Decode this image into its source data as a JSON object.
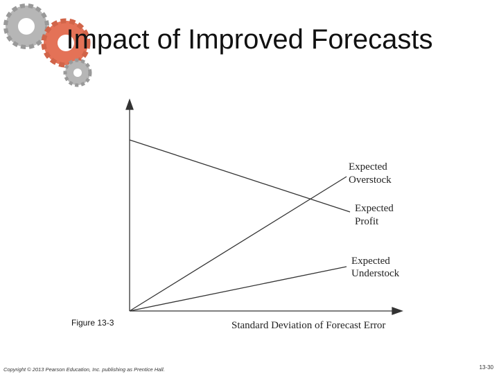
{
  "slide": {
    "title": "Impact of Improved Forecasts",
    "figure": {
      "x_axis_label": "Standard Deviation of Forecast Error",
      "curves": [
        {
          "label_lines": [
            "Expected",
            "Overstock"
          ]
        },
        {
          "label_lines": [
            "Expected",
            "Profit"
          ]
        },
        {
          "label_lines": [
            "Expected",
            "Understock"
          ]
        }
      ],
      "caption": "Figure 13-3"
    },
    "footer": {
      "copyright": "Copyright © 2013 Pearson Education, Inc. publishing as Prentice Hall.",
      "page_number": "13-30"
    }
  }
}
